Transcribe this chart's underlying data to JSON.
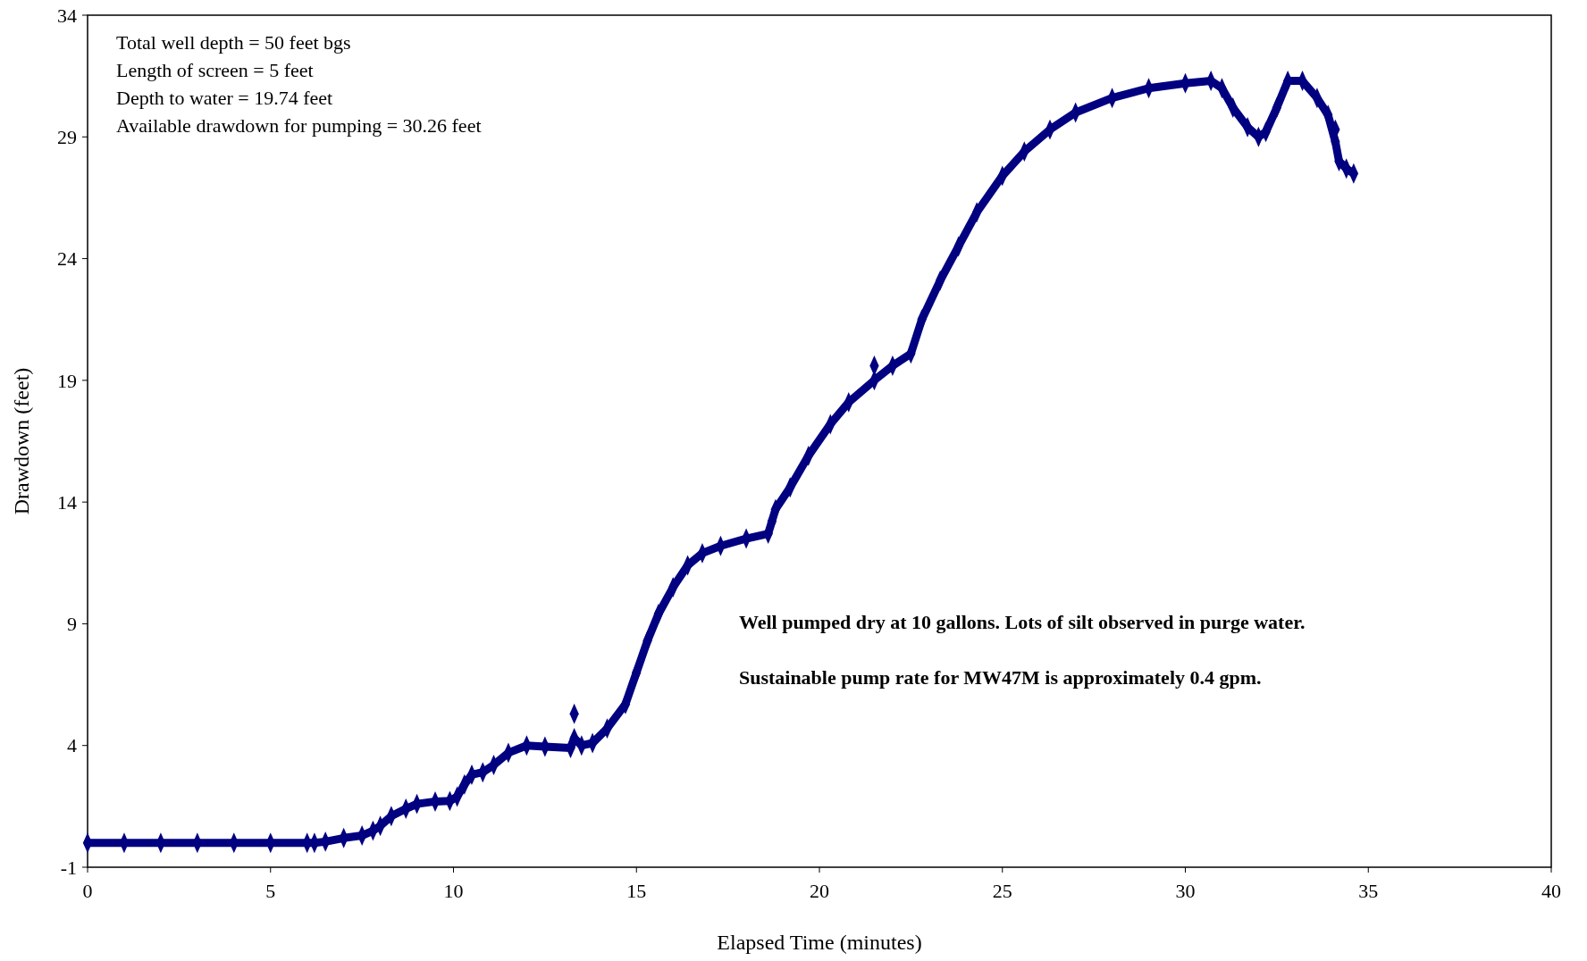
{
  "chart_data": {
    "type": "line",
    "xlabel": "Elapsed Time (minutes)",
    "ylabel": "Drawdown (feet)",
    "annotations": [
      "Total well depth = 50 feet bgs",
      "Length of screen = 5 feet",
      "Depth to water = 19.74 feet",
      "Available drawdown for pumping = 30.26 feet",
      "Well pumped dry at 10 gallons. Lots of silt observed in purge water.",
      "Sustainable pump rate for MW47M is approximately 0.4 gpm."
    ],
    "xlim": [
      0,
      40
    ],
    "xticks": [
      0,
      5,
      10,
      15,
      20,
      25,
      30,
      35,
      40
    ],
    "ylim": [
      -1,
      34
    ],
    "yticks": [
      -1,
      4,
      9,
      14,
      19,
      24,
      29,
      34
    ],
    "grid": false,
    "marker": "diamond",
    "line_style": "solid",
    "series": [
      {
        "color": "#000080",
        "x": [
          0,
          1,
          2,
          3,
          4,
          5,
          6,
          6.2,
          6.5,
          7,
          7.5,
          7.8,
          8,
          8.3,
          8.7,
          9,
          9.5,
          9.9,
          10.1,
          10.3,
          10.5,
          10.8,
          11.1,
          11.5,
          12,
          12.5,
          13.2,
          13.3,
          13.5,
          13.8,
          14.2,
          14.7,
          15,
          15.3,
          15.6,
          16,
          16.4,
          16.8,
          17.3,
          18,
          18.6,
          18.7,
          18.8,
          19.2,
          19.7,
          20.3,
          20.8,
          21.5,
          22,
          22.5,
          22.8,
          23.3,
          23.8,
          24.3,
          25,
          25.6,
          26.3,
          27,
          28,
          29,
          30,
          30.7,
          31,
          31.3,
          31.7,
          32,
          32.2,
          32.5,
          32.8,
          33.2,
          33.6,
          33.9,
          34.1,
          34.2,
          34.4,
          34.6
        ],
        "values": [
          0,
          0,
          0,
          0,
          0,
          0,
          0,
          0,
          0.05,
          0.2,
          0.3,
          0.5,
          0.7,
          1.1,
          1.4,
          1.6,
          1.7,
          1.72,
          1.9,
          2.4,
          2.8,
          2.9,
          3.2,
          3.7,
          4,
          3.95,
          3.9,
          4.3,
          4,
          4.1,
          4.7,
          5.7,
          7,
          8.3,
          9.4,
          10.5,
          11.4,
          11.9,
          12.2,
          12.5,
          12.7,
          13.2,
          13.7,
          14.6,
          15.9,
          17.2,
          18.1,
          19,
          19.6,
          20.1,
          21.5,
          23.1,
          24.5,
          25.9,
          27.4,
          28.4,
          29.3,
          30,
          30.6,
          31,
          31.2,
          31.3,
          31,
          30.2,
          29.4,
          29,
          29.2,
          30.2,
          31.3,
          31.3,
          30.6,
          29.9,
          28.8,
          28,
          27.7,
          27.5
        ]
      },
      {
        "type": "scatter",
        "color": "#000080",
        "x": [
          13.3,
          21.5,
          34.1
        ],
        "values": [
          5.3,
          19.6,
          29.3
        ]
      }
    ]
  }
}
